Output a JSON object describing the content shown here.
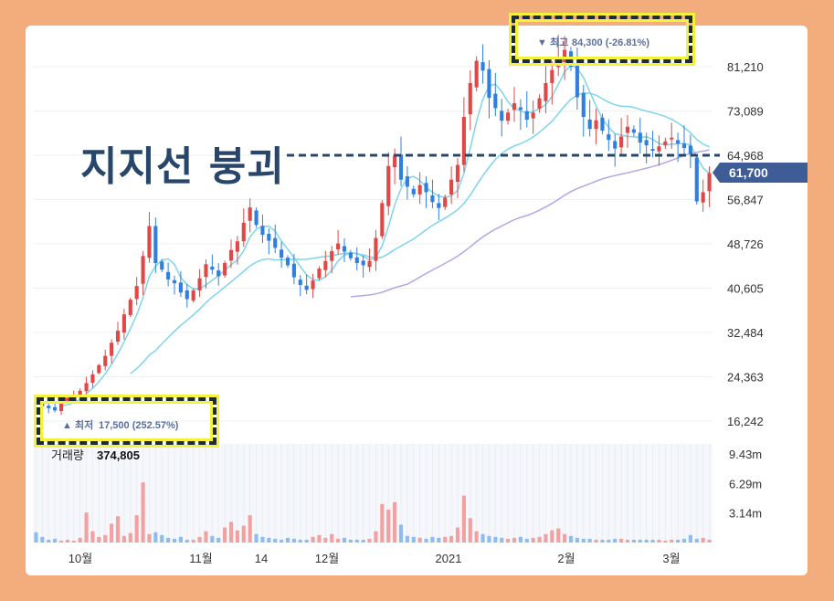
{
  "chart_data": {
    "type": "candlestick",
    "y_ticks": [
      "81,210",
      "73,089",
      "64,968",
      "56,847",
      "48,726",
      "40,605",
      "32,484",
      "24,363",
      "16,242"
    ],
    "x_ticks": [
      "10월",
      "11월",
      "14",
      "12월",
      "2021",
      "2월",
      "3월"
    ],
    "volume_label": "거래량",
    "volume_value": "374,805",
    "volume_ticks": [
      "9.43m",
      "6.29m",
      "3.14m"
    ],
    "current_price": "61,700",
    "high_marker": {
      "prefix": "▼ 최고",
      "value": "84,300 (-26.81%)"
    },
    "low_marker": {
      "prefix": "▲ 최저",
      "value": "17,500 (252.57%)"
    },
    "support_level": 64968,
    "ylim": [
      16242,
      85000
    ],
    "colors": {
      "up": "#e04848",
      "down": "#2f7fe0",
      "ma_short": "#7dd5ec",
      "ma_long": "#b3a7e6",
      "support": "#28456a"
    },
    "closes": [
      19500,
      19000,
      18600,
      18200,
      19800,
      20500,
      21000,
      21800,
      23200,
      24800,
      26500,
      28200,
      30600,
      32800,
      35800,
      38500,
      41000,
      46500,
      52000,
      45200,
      44000,
      42200,
      41500,
      39800,
      38600,
      40200,
      42400,
      45000,
      44000,
      42800,
      45200,
      47600,
      49200,
      52600,
      55400,
      52200,
      50400,
      49300,
      48000,
      46200,
      44800,
      42600,
      41200,
      40300,
      42000,
      44200,
      45600,
      47400,
      48800,
      47300,
      46100,
      45200,
      44800,
      45600,
      49800,
      56200,
      63000,
      64900,
      60500,
      59200,
      57800,
      59500,
      58200,
      56400,
      55300,
      57200,
      60500,
      63200,
      72000,
      78200,
      82300,
      80500,
      75500,
      73600,
      71300,
      72800,
      74500,
      73300,
      71500,
      72800,
      75400,
      78200,
      80600,
      82900,
      84300,
      81200,
      75600,
      72000,
      69800,
      71400,
      69500,
      67800,
      66200,
      68400,
      70200,
      69100,
      67300,
      66800,
      65900,
      66600,
      67500,
      68200,
      67100,
      66300,
      65200,
      56500,
      58200,
      61700
    ],
    "volumes": [
      1.1,
      0.6,
      0.3,
      0.4,
      0.2,
      0.3,
      0.2,
      0.5,
      3.2,
      1.2,
      0.6,
      0.8,
      2.0,
      2.8,
      0.7,
      1.0,
      2.9,
      6.4,
      0.9,
      1.1,
      0.8,
      0.5,
      0.4,
      0.6,
      0.3,
      0.3,
      0.6,
      1.2,
      0.7,
      0.5,
      1.6,
      2.2,
      1.3,
      1.8,
      2.9,
      0.9,
      0.6,
      0.5,
      0.4,
      0.3,
      0.5,
      0.4,
      0.3,
      0.3,
      0.6,
      0.8,
      0.5,
      0.9,
      0.4,
      0.5,
      0.3,
      0.3,
      0.3,
      0.4,
      1.2,
      4.1,
      3.5,
      4.3,
      1.9,
      0.7,
      0.6,
      0.5,
      0.4,
      0.6,
      0.5,
      0.6,
      0.7,
      1.6,
      5.0,
      2.6,
      1.2,
      0.9,
      0.7,
      0.6,
      0.5,
      0.4,
      0.5,
      0.6,
      0.4,
      0.5,
      0.6,
      0.9,
      1.3,
      1.5,
      0.9,
      0.7,
      0.5,
      0.4,
      0.4,
      0.3,
      0.3,
      0.3,
      0.4,
      0.4,
      0.3,
      0.3,
      0.3,
      0.3,
      0.3,
      0.3,
      0.2,
      0.3,
      0.3,
      0.4,
      0.8,
      0.4,
      0.5,
      0.3
    ]
  }
}
